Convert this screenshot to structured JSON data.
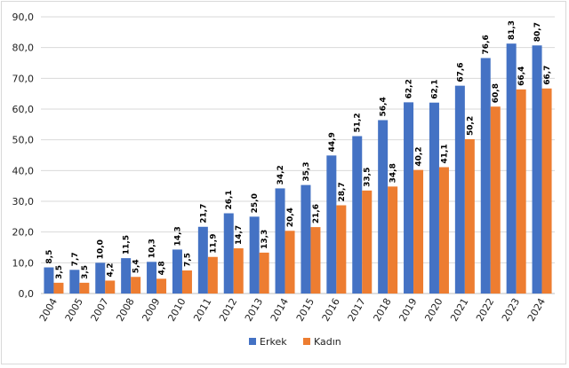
{
  "chart_data": {
    "type": "bar",
    "categories": [
      "2004",
      "2005",
      "2007",
      "2008",
      "2009",
      "2010",
      "2011",
      "2012",
      "2013",
      "2014",
      "2015",
      "2016",
      "2017",
      "2018",
      "2019",
      "2020",
      "2021",
      "2022",
      "2023",
      "2024"
    ],
    "series": [
      {
        "name": "Erkek",
        "color": "#4472c4",
        "values": [
          8.5,
          7.7,
          10.0,
          11.5,
          10.3,
          14.3,
          21.7,
          26.1,
          25.0,
          34.2,
          35.3,
          44.9,
          51.2,
          56.4,
          62.2,
          62.1,
          67.6,
          76.6,
          81.3,
          80.7
        ],
        "labels": [
          "8,5",
          "7,7",
          "10,0",
          "11,5",
          "10,3",
          "14,3",
          "21,7",
          "26,1",
          "25,0",
          "34,2",
          "35,3",
          "44,9",
          "51,2",
          "56,4",
          "62,2",
          "62,1",
          "67,6",
          "76,6",
          "81,3",
          "80,7"
        ]
      },
      {
        "name": "Kadın",
        "color": "#ed7d31",
        "values": [
          3.5,
          3.5,
          4.2,
          5.4,
          4.8,
          7.5,
          11.9,
          14.7,
          13.3,
          20.4,
          21.6,
          28.7,
          33.5,
          34.8,
          40.2,
          41.1,
          50.2,
          60.8,
          66.4,
          66.7
        ],
        "labels": [
          "3,5",
          "3,5",
          "4,2",
          "5,4",
          "4,8",
          "7,5",
          "11,9",
          "14,7",
          "13,3",
          "20,4",
          "21,6",
          "28,7",
          "33,5",
          "34,8",
          "40,2",
          "41,1",
          "50,2",
          "60,8",
          "66,4",
          "66,7"
        ]
      }
    ],
    "ylim": [
      0,
      90
    ],
    "yticks": [
      0,
      10,
      20,
      30,
      40,
      50,
      60,
      70,
      80,
      90
    ],
    "ytick_labels": [
      "0,0",
      "10,0",
      "20,0",
      "30,0",
      "40,0",
      "50,0",
      "60,0",
      "70,0",
      "80,0",
      "90,0"
    ],
    "grid": true,
    "legend_position": "bottom-center",
    "title": "",
    "xlabel": "",
    "ylabel": ""
  }
}
